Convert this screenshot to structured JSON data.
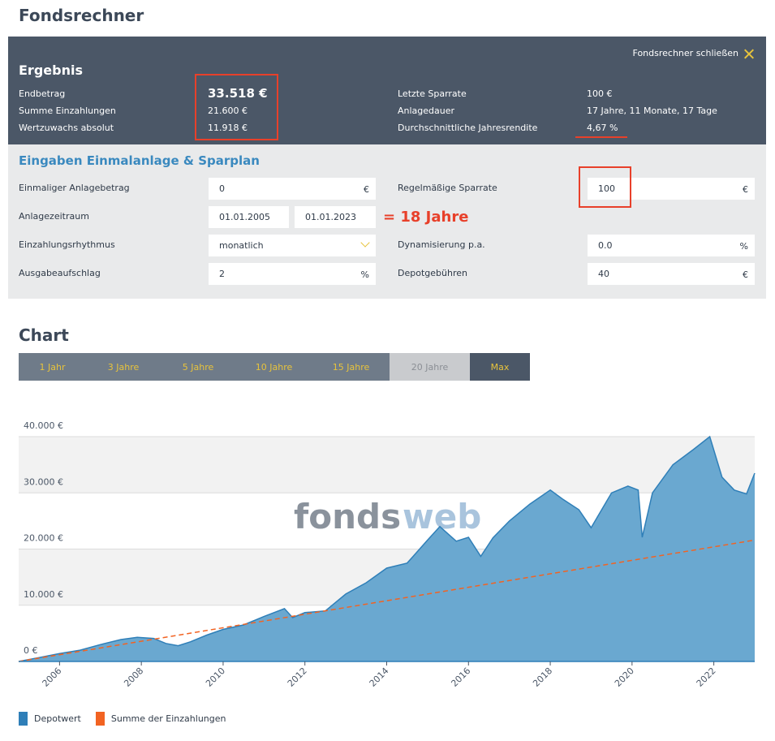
{
  "page": {
    "title": "Fondsrechner"
  },
  "result": {
    "title": "Ergebnis",
    "close_label": "Fondsrechner schließen",
    "rows_left": [
      {
        "label": "Endbetrag",
        "value": "33.518 €"
      },
      {
        "label": "Summe Einzahlungen",
        "value": "21.600 €"
      },
      {
        "label": "Wertzuwachs absolut",
        "value": "11.918 €"
      }
    ],
    "rows_right": [
      {
        "label": "Letzte Sparrate",
        "value": "100 €"
      },
      {
        "label": "Anlagedauer",
        "value": "17 Jahre, 11 Monate, 17 Tage"
      },
      {
        "label": "Durchschnittliche Jahresrendite",
        "value": "4,67 %"
      }
    ]
  },
  "inputs": {
    "title": "Eingaben Einmalanlage & Sparplan",
    "einmalig": {
      "label": "Einmaliger Anlagebetrag",
      "value": "0",
      "unit": "€"
    },
    "zeitraum": {
      "label": "Anlagezeitraum",
      "start": "01.01.2005",
      "end": "01.01.2023"
    },
    "rhythmus": {
      "label": "Einzahlungsrhythmus",
      "value": "monatlich"
    },
    "ausgabeaufschlag": {
      "label": "Ausgabeaufschlag",
      "value": "2",
      "unit": "%"
    },
    "sparrate": {
      "label": "Regelmäßige Sparrate",
      "value": "100",
      "unit": "€"
    },
    "dynamisierung": {
      "label": "Dynamisierung p.a.",
      "value": "0.0",
      "unit": "%"
    },
    "depotgebuehren": {
      "label": "Depotgebühren",
      "value": "40",
      "unit": "€"
    },
    "annotation": "= 18 Jahre"
  },
  "chart": {
    "title": "Chart",
    "tabs": [
      {
        "label": "1 Jahr",
        "state": "normal"
      },
      {
        "label": "3 Jahre",
        "state": "normal"
      },
      {
        "label": "5 Jahre",
        "state": "normal"
      },
      {
        "label": "10 Jahre",
        "state": "normal"
      },
      {
        "label": "15 Jahre",
        "state": "normal"
      },
      {
        "label": "20 Jahre",
        "state": "disabled"
      },
      {
        "label": "Max",
        "state": "active"
      }
    ],
    "watermark": {
      "part1": "fonds",
      "part2": "web"
    },
    "legend": [
      {
        "label": "Depotwert",
        "color": "#2f7fb8"
      },
      {
        "label": "Summe der Einzahlungen",
        "color": "#f26322"
      }
    ]
  },
  "colors": {
    "header_bg": "#4b5767",
    "accent_blue": "#3a89bf",
    "accent_yellow": "#e7c33c",
    "highlight_red": "#e8402a"
  },
  "chart_data": {
    "type": "area",
    "x_range": [
      2005.0,
      2023.0
    ],
    "ylim": [
      0,
      45000
    ],
    "yticks": [
      0,
      10000,
      20000,
      30000,
      40000
    ],
    "ytick_labels": [
      "0 €",
      "10.000 €",
      "20.000 €",
      "30.000 €",
      "40.000 €"
    ],
    "xticks": [
      2006,
      2008,
      2010,
      2012,
      2014,
      2016,
      2018,
      2020,
      2022
    ],
    "xtick_labels": [
      "2006",
      "2008",
      "2010",
      "2012",
      "2014",
      "2016",
      "2018",
      "2020",
      "2022"
    ],
    "grid": true,
    "legend_position": "bottom-left",
    "series": [
      {
        "name": "Depotwert",
        "type": "area",
        "color": "#2f7fb8",
        "x": [
          2005.0,
          2005.5,
          2006.0,
          2006.5,
          2007.0,
          2007.5,
          2007.9,
          2008.3,
          2008.6,
          2008.9,
          2009.2,
          2009.6,
          2010.0,
          2010.5,
          2011.0,
          2011.5,
          2011.7,
          2012.0,
          2012.5,
          2013.0,
          2013.5,
          2014.0,
          2014.5,
          2015.0,
          2015.3,
          2015.7,
          2016.0,
          2016.3,
          2016.6,
          2017.0,
          2017.5,
          2018.0,
          2018.3,
          2018.7,
          2019.0,
          2019.5,
          2019.9,
          2020.15,
          2020.25,
          2020.5,
          2021.0,
          2021.5,
          2021.9,
          2022.2,
          2022.5,
          2022.8,
          2023.0
        ],
        "values": [
          0,
          700,
          1400,
          2000,
          3000,
          3900,
          4300,
          4100,
          3200,
          2800,
          3500,
          4700,
          5700,
          6500,
          8000,
          9400,
          7800,
          8700,
          9000,
          12000,
          14000,
          16600,
          17500,
          21600,
          24000,
          21400,
          22100,
          18700,
          22000,
          25000,
          28000,
          30500,
          28900,
          27000,
          23800,
          30000,
          31200,
          30500,
          22100,
          30000,
          35000,
          37700,
          40000,
          32800,
          30500,
          29800,
          33500
        ]
      },
      {
        "name": "Summe der Einzahlungen",
        "type": "line",
        "dashed": true,
        "color": "#f26322",
        "x": [
          2005.0,
          2023.0
        ],
        "values": [
          0,
          21600
        ]
      }
    ]
  }
}
